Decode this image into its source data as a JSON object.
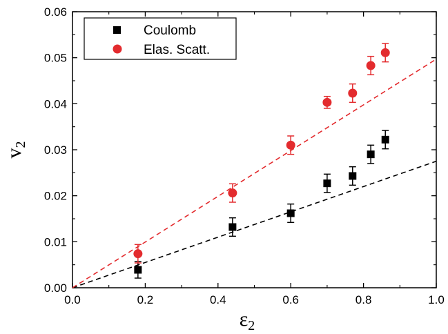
{
  "chart_data": {
    "type": "scatter",
    "xlim": [
      0.0,
      1.0
    ],
    "ylim": [
      0.0,
      0.06
    ],
    "x_ticks": [
      "0.0",
      "0.2",
      "0.4",
      "0.6",
      "0.8",
      "1.0"
    ],
    "y_ticks": [
      "0.00",
      "0.01",
      "0.02",
      "0.03",
      "0.04",
      "0.05",
      "0.06"
    ],
    "xlabel": {
      "main": "ε",
      "sub": "2"
    },
    "ylabel": {
      "main": "v",
      "sub": "2"
    },
    "legend_position": "top-left",
    "series": [
      {
        "name": "Coulomb",
        "marker": "square",
        "color": "#000000",
        "x": [
          0.18,
          0.44,
          0.6,
          0.7,
          0.77,
          0.82,
          0.86
        ],
        "y": [
          0.0039,
          0.0132,
          0.0162,
          0.0227,
          0.0243,
          0.029,
          0.0322
        ],
        "err": [
          0.0018,
          0.002,
          0.002,
          0.002,
          0.002,
          0.002,
          0.002
        ],
        "fit_line": {
          "x": [
            0.0,
            1.0
          ],
          "y": [
            0.0,
            0.0275
          ],
          "style": "dashed"
        }
      },
      {
        "name": "Elas. Scatt.",
        "marker": "circle",
        "color": "#e32b2e",
        "x": [
          0.18,
          0.44,
          0.6,
          0.7,
          0.77,
          0.82,
          0.86
        ],
        "y": [
          0.0074,
          0.0206,
          0.031,
          0.0403,
          0.0423,
          0.0483,
          0.0511
        ],
        "err": [
          0.002,
          0.002,
          0.002,
          0.0013,
          0.002,
          0.002,
          0.002
        ],
        "fit_line": {
          "x": [
            0.0,
            1.0
          ],
          "y": [
            0.0,
            0.0497
          ],
          "style": "dashed"
        }
      }
    ]
  }
}
